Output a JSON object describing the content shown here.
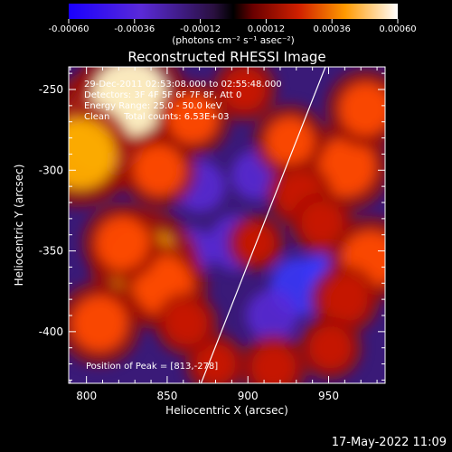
{
  "colorbar": {
    "ticks": [
      -0.0006,
      -0.00036,
      -0.00012,
      0.00012,
      0.00036,
      0.0006
    ],
    "tick_labels": [
      "-0.00060",
      "-0.00036",
      "-0.00012",
      "0.00012",
      "0.00036",
      "0.00060"
    ],
    "units_label": "(photons cm⁻² s⁻¹ asec⁻²)",
    "range": [
      -0.0006,
      0.0006
    ]
  },
  "chart_data": {
    "type": "heatmap",
    "title": "Reconstructed RHESSI Image",
    "xlabel": "Heliocentric X (arcsec)",
    "ylabel": "Heliocentric Y (arcsec)",
    "xlim": [
      789,
      985
    ],
    "ylim": [
      -432,
      -236
    ],
    "x_ticks": [
      800,
      850,
      900,
      950
    ],
    "y_ticks": [
      -250,
      -300,
      -350,
      -400
    ],
    "annotations": [
      "29-Dec-2011 02:53:08.000 to 02:55:48.000",
      "Detectors: 3F 4F 5F 6F 7F 8F, Att 0",
      "Energy Range: 25.0 - 50.0 keV",
      "Clean     Total counts: 6.53E+03"
    ],
    "peak_text": "Position of Peak = [813,-278]",
    "peak_position": [
      813,
      -278
    ],
    "limb_line": [
      [
        871,
        -432
      ],
      [
        948,
        -236
      ]
    ],
    "emission_features": [
      {
        "x": 812,
        "y": -275,
        "value": 0.0006
      },
      {
        "x": 827,
        "y": -255,
        "value": 0.00052
      },
      {
        "x": 796,
        "y": -290,
        "value": 0.00048
      },
      {
        "x": 836,
        "y": -358,
        "value": 0.0005
      },
      {
        "x": 848,
        "y": -372,
        "value": 0.00036
      },
      {
        "x": 822,
        "y": -345,
        "value": 0.0003
      },
      {
        "x": 808,
        "y": -395,
        "value": 0.00033
      },
      {
        "x": 845,
        "y": -300,
        "value": 0.00028
      },
      {
        "x": 866,
        "y": -268,
        "value": 0.00027
      },
      {
        "x": 898,
        "y": -250,
        "value": 0.0002
      },
      {
        "x": 961,
        "y": -298,
        "value": 0.00036
      },
      {
        "x": 973,
        "y": -262,
        "value": 0.0003
      },
      {
        "x": 926,
        "y": -282,
        "value": 0.00026
      },
      {
        "x": 932,
        "y": -315,
        "value": 0.00022
      },
      {
        "x": 946,
        "y": -333,
        "value": 0.0002
      },
      {
        "x": 976,
        "y": -355,
        "value": 0.00034
      },
      {
        "x": 960,
        "y": -380,
        "value": 0.00024
      },
      {
        "x": 951,
        "y": -410,
        "value": 0.0002
      },
      {
        "x": 916,
        "y": -422,
        "value": 0.00022
      },
      {
        "x": 880,
        "y": -420,
        "value": 0.00018
      },
      {
        "x": 905,
        "y": -345,
        "value": 0.00016
      },
      {
        "x": 862,
        "y": -395,
        "value": 0.0002
      }
    ],
    "dark_features": [
      {
        "x": 893,
        "y": -345,
        "value": -0.00026
      },
      {
        "x": 932,
        "y": -372,
        "value": -0.00028
      },
      {
        "x": 955,
        "y": -365,
        "value": -0.0003
      },
      {
        "x": 870,
        "y": -310,
        "value": -0.00022
      },
      {
        "x": 905,
        "y": -303,
        "value": -0.0002
      },
      {
        "x": 865,
        "y": -350,
        "value": -0.00018
      },
      {
        "x": 915,
        "y": -390,
        "value": -0.00022
      }
    ]
  },
  "footer": {
    "timestamp": "17-May-2022 11:09"
  }
}
